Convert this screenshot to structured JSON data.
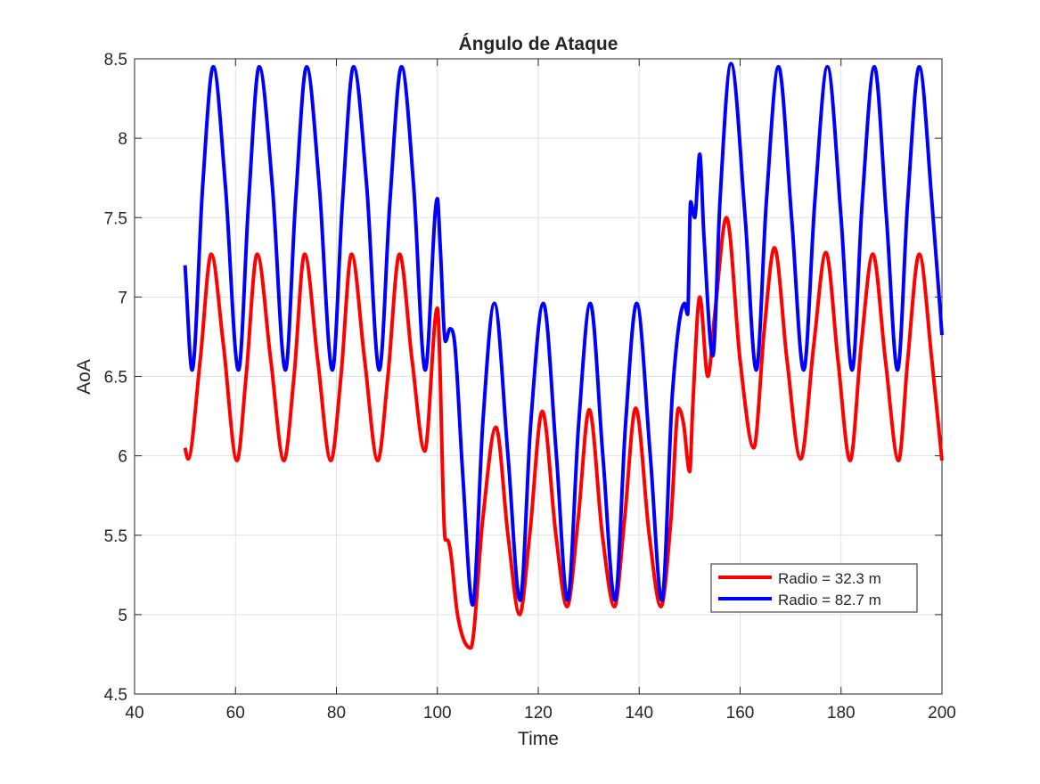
{
  "chart_data": {
    "type": "line",
    "title": "Ángulo de Ataque",
    "xlabel": "Time",
    "ylabel": "AoA",
    "xlim": [
      40,
      200
    ],
    "ylim": [
      4.5,
      8.5
    ],
    "xticks": [
      40,
      60,
      80,
      100,
      120,
      140,
      160,
      180,
      200
    ],
    "xtick_labels": [
      "40",
      "60",
      "80",
      "100",
      "120",
      "140",
      "160",
      "180",
      "200"
    ],
    "yticks": [
      4.5,
      5,
      5.5,
      6,
      6.5,
      7,
      7.5,
      8,
      8.5
    ],
    "ytick_labels": [
      "4.5",
      "5",
      "5.5",
      "6",
      "6.5",
      "7",
      "7.5",
      "8",
      "8.5"
    ],
    "grid": true,
    "legend_position": "lower-right",
    "series": [
      {
        "name": "Radio = 32.3 m",
        "color": "#ff0000",
        "x": [
          50,
          50.6,
          53.0,
          55.2,
          57.6,
          60.3,
          62.1,
          64.3,
          67.0,
          69.6,
          71.6,
          73.7,
          76.3,
          78.9,
          80.9,
          83.0,
          85.6,
          88.2,
          90.2,
          92.5,
          95.0,
          97.5,
          100.0,
          101.6,
          102.0,
          102.6,
          104.0,
          106.6,
          109.0,
          111.6,
          114.0,
          116.3,
          118.3,
          120.8,
          123.5,
          125.7,
          127.9,
          130.1,
          132.7,
          135.1,
          137.1,
          139.3,
          142.0,
          144.3,
          146.3,
          147.8,
          148.8,
          150.0,
          150.6,
          152.0,
          153.6,
          155.0,
          157.3,
          160.0,
          162.7,
          164.8,
          166.8,
          169.3,
          172.0,
          174.6,
          177.0,
          179.4,
          181.8,
          184.0,
          186.3,
          188.8,
          191.4,
          193.2,
          195.5,
          198.0,
          200.0
        ],
        "y": [
          6.05,
          5.98,
          6.6,
          7.27,
          6.7,
          5.97,
          6.5,
          7.27,
          6.6,
          5.97,
          6.5,
          7.27,
          6.6,
          5.97,
          6.5,
          7.27,
          6.6,
          5.97,
          6.5,
          7.27,
          6.6,
          6.03,
          6.93,
          5.47,
          5.47,
          5.4,
          5.0,
          4.79,
          5.6,
          6.18,
          5.5,
          5.0,
          5.5,
          6.28,
          5.5,
          5.05,
          5.6,
          6.29,
          5.5,
          5.05,
          5.6,
          6.3,
          5.5,
          5.05,
          5.6,
          6.3,
          6.2,
          5.9,
          6.3,
          7.0,
          6.5,
          6.9,
          7.5,
          6.6,
          6.05,
          6.8,
          7.31,
          6.6,
          5.98,
          6.7,
          7.28,
          6.6,
          5.97,
          6.7,
          7.27,
          6.6,
          5.97,
          6.6,
          7.27,
          6.6,
          5.97
        ]
      },
      {
        "name": "Radio = 82.7 m",
        "color": "#0000ff",
        "x": [
          50,
          51.4,
          53.5,
          55.6,
          58.0,
          60.6,
          62.6,
          64.7,
          67.3,
          69.9,
          71.9,
          74.1,
          76.6,
          79.2,
          81.2,
          83.4,
          86.0,
          88.5,
          90.6,
          92.9,
          95.3,
          97.6,
          100.0,
          100.6,
          101.6,
          102.5,
          103.4,
          105.0,
          107.0,
          109.0,
          111.3,
          114.0,
          116.4,
          118.5,
          121.0,
          123.6,
          125.8,
          128.0,
          130.3,
          132.8,
          135.2,
          137.3,
          139.5,
          142.2,
          144.5,
          146.6,
          149.0,
          149.6,
          150.2,
          151.0,
          152.0,
          152.8,
          154.6,
          156.0,
          158.2,
          161.0,
          163.2,
          165.2,
          167.6,
          170.2,
          172.6,
          174.8,
          177.3,
          180.0,
          182.2,
          184.2,
          186.6,
          189.0,
          191.2,
          193.2,
          195.5,
          198.0,
          200.0
        ],
        "y": [
          7.2,
          6.54,
          7.7,
          8.45,
          7.7,
          6.54,
          7.6,
          8.45,
          7.7,
          6.54,
          7.6,
          8.45,
          7.7,
          6.54,
          7.6,
          8.45,
          7.7,
          6.54,
          7.6,
          8.45,
          7.7,
          6.54,
          7.62,
          7.3,
          6.72,
          6.8,
          6.72,
          5.9,
          5.06,
          6.2,
          6.96,
          6.0,
          5.09,
          6.2,
          6.96,
          6.0,
          5.09,
          6.2,
          6.96,
          6.0,
          5.09,
          6.2,
          6.96,
          6.0,
          5.09,
          6.4,
          6.96,
          6.89,
          7.6,
          7.5,
          7.9,
          7.4,
          6.63,
          7.6,
          8.47,
          7.5,
          6.54,
          7.6,
          8.45,
          7.5,
          6.54,
          7.6,
          8.45,
          7.5,
          6.54,
          7.6,
          8.45,
          7.5,
          6.54,
          7.6,
          8.45,
          7.6,
          6.76
        ]
      }
    ]
  }
}
